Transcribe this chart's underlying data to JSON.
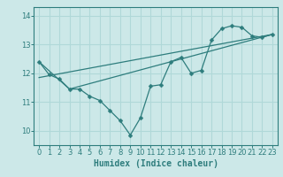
{
  "xlabel": "Humidex (Indice chaleur)",
  "ylabel": "",
  "background_color": "#cce8e8",
  "grid_color": "#b0d8d8",
  "line_color": "#2e7d7d",
  "xlim": [
    -0.5,
    23.5
  ],
  "ylim": [
    9.5,
    14.3
  ],
  "yticks": [
    10,
    11,
    12,
    13,
    14
  ],
  "xticks": [
    0,
    1,
    2,
    3,
    4,
    5,
    6,
    7,
    8,
    9,
    10,
    11,
    12,
    13,
    14,
    15,
    16,
    17,
    18,
    19,
    20,
    21,
    22,
    23
  ],
  "series1_x": [
    0,
    1,
    2,
    3,
    4,
    5,
    6,
    7,
    8,
    9,
    10,
    11,
    12,
    13,
    14,
    15,
    16,
    17,
    18,
    19,
    20,
    21,
    22,
    23
  ],
  "series1_y": [
    12.4,
    11.95,
    11.8,
    11.45,
    11.45,
    11.2,
    11.05,
    10.7,
    10.35,
    9.85,
    10.45,
    11.55,
    11.6,
    12.4,
    12.55,
    12.0,
    12.1,
    13.15,
    13.55,
    13.65,
    13.6,
    13.3,
    13.25,
    13.35
  ],
  "series2_x": [
    0,
    3,
    23
  ],
  "series2_y": [
    12.4,
    11.45,
    13.35
  ],
  "series3_x": [
    0,
    23
  ],
  "series3_y": [
    11.85,
    13.35
  ],
  "marker_size": 2.5,
  "line_width": 0.9,
  "font_size_label": 7,
  "font_size_tick": 6
}
